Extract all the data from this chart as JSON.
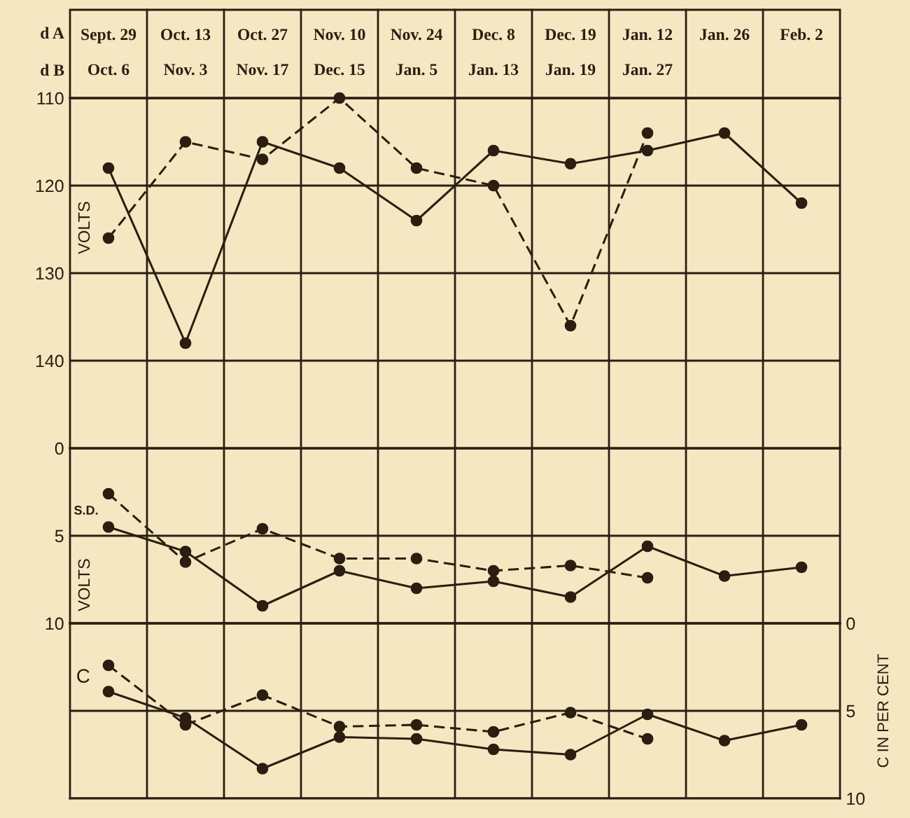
{
  "chart_data": [
    {
      "type": "line",
      "categories": [
        "Sept. 29\nOct. 6",
        "Oct. 13\nNov. 3",
        "Oct. 27\nNov. 17",
        "Nov. 10\nDec. 15",
        "Nov. 24\nJan. 5",
        "Dec. 8\nJan. 13",
        "Dec. 19\nJan. 19",
        "Jan. 12\nJan. 27",
        "Jan. 26",
        "Feb. 2"
      ],
      "ylabel": "VOLTS",
      "ylim": [
        150,
        110
      ],
      "yticks": [
        110,
        120,
        130,
        140
      ],
      "grid": true,
      "marker": "circle",
      "line_style": "solid",
      "annotations": [
        "d A",
        "d B"
      ],
      "series": [
        {
          "color": "#2b1e10",
          "values": [
            118,
            138,
            115,
            118,
            124,
            116,
            117.5,
            116,
            114,
            122
          ]
        },
        {
          "color": "#2b1e10",
          "line_style": "dashed",
          "values": [
            126,
            115,
            117,
            110,
            118,
            120,
            136,
            114,
            null,
            null
          ]
        }
      ]
    },
    {
      "type": "line",
      "categories": [
        null,
        null,
        null,
        null,
        null,
        null,
        null,
        null,
        null,
        null
      ],
      "ylabel": "VOLTS",
      "ylim": [
        10,
        0
      ],
      "yticks": [
        0,
        5,
        10
      ],
      "grid": true,
      "marker": "circle",
      "line_style": "solid",
      "tick_labels": "y",
      "annotations": [
        "S.D."
      ],
      "series": [
        {
          "color": "#2b1e10",
          "values": [
            4.5,
            5.9,
            9.0,
            7.0,
            8.0,
            7.6,
            8.5,
            5.6,
            7.3,
            6.8
          ]
        },
        {
          "color": "#2b1e10",
          "line_style": "dashed",
          "values": [
            2.6,
            6.5,
            4.6,
            6.3,
            6.3,
            7.0,
            6.7,
            7.4,
            null,
            null
          ]
        }
      ]
    },
    {
      "type": "line",
      "categories": [
        null,
        null,
        null,
        null,
        null,
        null,
        null,
        null,
        null,
        null
      ],
      "ylabel": "C IN PER CENT",
      "ylim": [
        10,
        0
      ],
      "yticks": [
        0,
        5,
        10
      ],
      "grid": true,
      "marker": "circle",
      "line_style": "solid",
      "tick_labels": "y",
      "annotations": [
        "C"
      ],
      "series": [
        {
          "color": "#2b1e10",
          "values": [
            3.9,
            5.4,
            8.3,
            6.5,
            6.6,
            7.2,
            7.5,
            5.2,
            6.7,
            5.8
          ]
        },
        {
          "color": "#2b1e10",
          "line_style": "dashed",
          "values": [
            2.4,
            5.8,
            4.1,
            5.9,
            5.8,
            6.2,
            5.1,
            6.6,
            null,
            null
          ]
        }
      ]
    }
  ]
}
